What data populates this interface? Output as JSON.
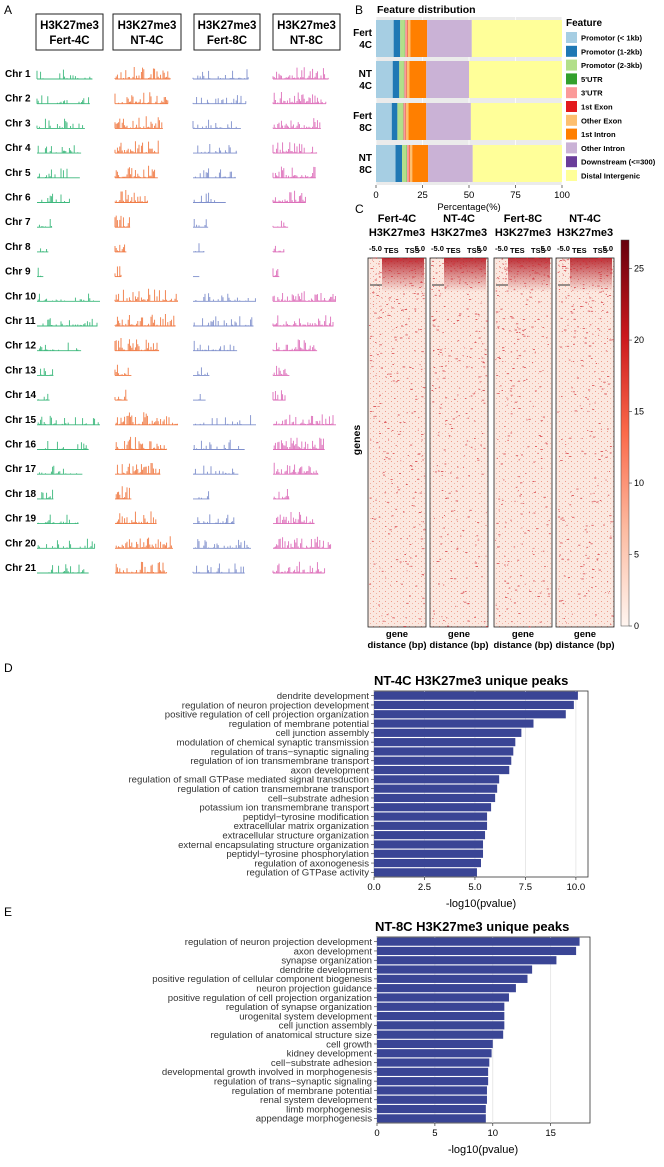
{
  "panel_letters": {
    "a": "A",
    "b": "B",
    "c": "C",
    "d": "D",
    "e": "E"
  },
  "colors": {
    "fert4c": "#3cb87c",
    "nt4c": "#f07a44",
    "fert8c": "#7f8fcc",
    "nt8c": "#dd6fba",
    "go_bar": "#3a4595",
    "heat": "#c0141b"
  },
  "chart_data": [
    {
      "id": "A",
      "type": "track",
      "columns": [
        {
          "line1": "H3K27me3",
          "line2": "Fert-4C"
        },
        {
          "line1": "H3K27me3",
          "line2": "NT-4C"
        },
        {
          "line1": "H3K27me3",
          "line2": "Fert-8C"
        },
        {
          "line1": "H3K27me3",
          "line2": "NT-8C"
        }
      ],
      "column_colors": [
        "#3cb87c",
        "#f07a44",
        "#7f8fcc",
        "#dd6fba"
      ],
      "chromosomes": [
        "Chr 1",
        "Chr 2",
        "Chr 3",
        "Chr 4",
        "Chr 5",
        "Chr 6",
        "Chr 7",
        "Chr 8",
        "Chr 9",
        "Chr 10",
        "Chr 11",
        "Chr 12",
        "Chr 13",
        "Chr 14",
        "Chr 15",
        "Chr 16",
        "Chr 17",
        "Chr 18",
        "Chr 19",
        "Chr 20",
        "Chr 21"
      ],
      "relative_lengths": [
        0.88,
        0.84,
        0.76,
        0.7,
        0.68,
        0.52,
        0.24,
        0.18,
        0.1,
        1.0,
        0.96,
        0.7,
        0.26,
        0.2,
        1.0,
        0.82,
        0.72,
        0.26,
        0.66,
        0.92,
        0.82
      ]
    },
    {
      "id": "B",
      "type": "stacked-bar",
      "title": "Feature distribution",
      "xlabel": "Percentage(%)",
      "xlim": [
        0,
        100
      ],
      "xticks": [
        "0",
        "25",
        "50",
        "75",
        "100"
      ],
      "legend_title": "Feature",
      "categories": [
        {
          "l1": "Fert",
          "l2": "4C"
        },
        {
          "l1": "NT",
          "l2": "4C"
        },
        {
          "l1": "Fert",
          "l2": "8C"
        },
        {
          "l1": "NT",
          "l2": "8C"
        }
      ],
      "series": [
        {
          "name": "Promotor (< 1kb)",
          "color": "#a6cee3",
          "values": [
            9.5,
            9,
            8.5,
            10.5
          ]
        },
        {
          "name": "Promotor (1-2kb)",
          "color": "#1f78b4",
          "values": [
            3.5,
            3.5,
            3,
            3.5
          ]
        },
        {
          "name": "Promotor (2-3kb)",
          "color": "#b2df8a",
          "values": [
            2.5,
            2.5,
            3,
            2.5
          ]
        },
        {
          "name": "5'UTR",
          "color": "#33a02c",
          "values": [
            0.2,
            0.2,
            0.2,
            0.2
          ]
        },
        {
          "name": "3'UTR",
          "color": "#fb9a99",
          "values": [
            1.0,
            1.0,
            1.0,
            1.0
          ]
        },
        {
          "name": "1st Exon",
          "color": "#e31a1c",
          "values": [
            0.3,
            0.3,
            0.3,
            0.3
          ]
        },
        {
          "name": "Other Exon",
          "color": "#fdbf6f",
          "values": [
            1.5,
            1.5,
            1.5,
            1.5
          ]
        },
        {
          "name": "1st Intron",
          "color": "#ff7f00",
          "values": [
            9,
            9,
            9.5,
            8.5
          ]
        },
        {
          "name": "Other Intron",
          "color": "#cab2d6",
          "values": [
            24,
            23,
            24,
            24
          ]
        },
        {
          "name": "Downstream (<=300)",
          "color": "#6a3d9a",
          "values": [
            0,
            0,
            0,
            0
          ]
        },
        {
          "name": "Distal Intergenic",
          "color": "#ffff99",
          "values": [
            48.5,
            50,
            49,
            48
          ]
        }
      ]
    },
    {
      "id": "C",
      "type": "heatmap",
      "panels": [
        {
          "l1": "Fert-4C",
          "l2": "H3K27me3"
        },
        {
          "l1": "NT-4C",
          "l2": "H3K27me3"
        },
        {
          "l1": "Fert-8C",
          "l2": "H3K27me3"
        },
        {
          "l1": "NT-4C",
          "l2": "H3K27me3"
        }
      ],
      "ticks": {
        "left": "-5.0",
        "tes": "TES",
        "tss": "TSS",
        "right": "5.0"
      },
      "ylabel": "genes",
      "xlabel_l1": "gene",
      "xlabel_l2": "distance (bp)",
      "colorbar": {
        "min": 0,
        "max": 27,
        "ticks": [
          0,
          5,
          10,
          15,
          20,
          25
        ]
      }
    },
    {
      "id": "D",
      "type": "bar",
      "orientation": "horizontal",
      "title": "NT-4C H3K27me3 unique peaks",
      "xlabel": "-log10(pvalue)",
      "xlim": [
        0,
        10.6
      ],
      "xticks": [
        0,
        2.5,
        5,
        7.5,
        10
      ],
      "xtick_labels": [
        "0.0",
        "2.5",
        "5.0",
        "7.5",
        "10.0"
      ],
      "categories": [
        "dendrite development",
        "regulation of neuron projection development",
        "positive regulation of cell projection organization",
        "regulation of membrane potential",
        "cell junction assembly",
        "modulation of chemical synaptic transmission",
        "regulation of trans−synaptic signaling",
        "regulation of ion transmembrane transport",
        "axon development",
        "regulation of small GTPase mediated signal transduction",
        "regulation of cation transmembrane transport",
        "cell−substrate adhesion",
        "potassium ion transmembrane transport",
        "peptidyl−tyrosine modification",
        "extracellular matrix organization",
        "extracellular structure organization",
        "external encapsulating structure organization",
        "peptidyl−tyrosine phosphorylation",
        "regulation of axonogenesis",
        "regulation of GTPase activity"
      ],
      "values": [
        10.1,
        9.9,
        9.5,
        7.9,
        7.3,
        7.0,
        6.9,
        6.8,
        6.7,
        6.2,
        6.1,
        6.0,
        5.8,
        5.6,
        5.6,
        5.5,
        5.4,
        5.4,
        5.3,
        5.1
      ]
    },
    {
      "id": "E",
      "type": "bar",
      "orientation": "horizontal",
      "title": "NT-8C H3K27me3 unique peaks",
      "xlabel": "-log10(pvalue)",
      "xlim": [
        0,
        18.4
      ],
      "xticks": [
        0,
        5,
        10,
        15
      ],
      "xtick_labels": [
        "0",
        "5",
        "10",
        "15"
      ],
      "categories": [
        "regulation of neuron projection development",
        "axon development",
        "synapse organization",
        "dendrite development",
        "positive regulation of cellular component biogenesis",
        "neuron projection guidance",
        "positive regulation of cell projection organization",
        "regulation of synapse organization",
        "urogenital system development",
        "cell junction assembly",
        "regulation of anatomical structure size",
        "cell growth",
        "kidney development",
        "cell−substrate adhesion",
        "developmental growth involved in morphogenesis",
        "regulation of trans−synaptic signaling",
        "regulation of membrane potential",
        "renal system development",
        "limb morphogenesis",
        "appendage morphogenesis"
      ],
      "values": [
        17.5,
        17.2,
        15.5,
        13.4,
        13.0,
        12.0,
        11.4,
        11.0,
        11.0,
        11.0,
        10.9,
        10.0,
        9.9,
        9.7,
        9.6,
        9.6,
        9.5,
        9.5,
        9.4,
        9.4
      ]
    }
  ]
}
